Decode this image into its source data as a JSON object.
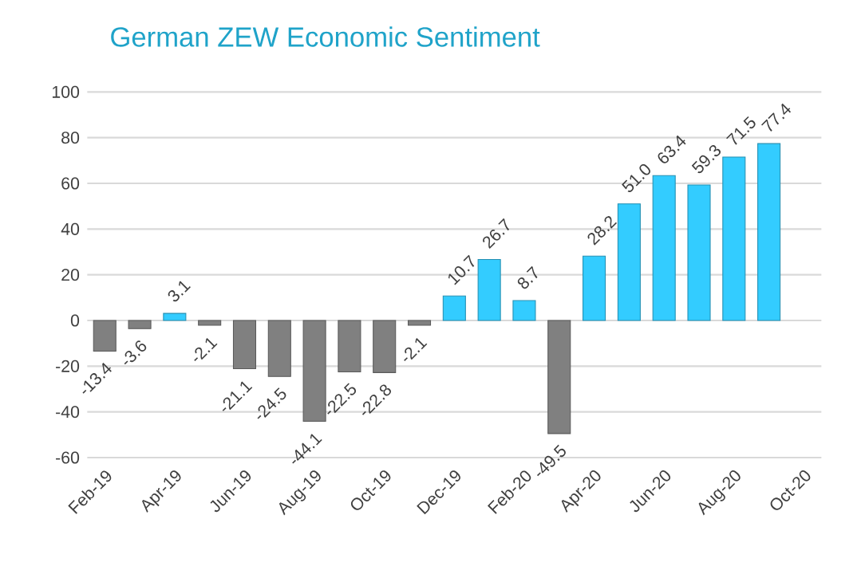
{
  "chart_data": {
    "type": "bar",
    "title": "German ZEW Economic Sentiment",
    "categories": [
      "Feb-19",
      null,
      "Apr-19",
      null,
      "Jun-19",
      null,
      "Aug-19",
      null,
      "Oct-19",
      null,
      "Dec-19",
      null,
      "Feb-20",
      null,
      "Apr-20",
      null,
      "Jun-20",
      null,
      "Aug-20",
      null,
      "Oct-20"
    ],
    "values": [
      -13.4,
      -3.6,
      3.1,
      -2.1,
      -21.1,
      -24.5,
      -44.1,
      -22.5,
      -22.8,
      -2.1,
      10.7,
      26.7,
      8.7,
      -49.5,
      28.2,
      51.0,
      63.4,
      59.3,
      71.5,
      77.4,
      null
    ],
    "value_labels": [
      "-13.4",
      "-3.6",
      "3.1",
      "-2.1",
      "-21.1",
      "-24.5",
      "-44.1",
      "-22.5",
      "-22.8",
      "-2.1",
      "10.7",
      "26.7",
      "8.7",
      "-49.5",
      "28.2",
      "51.0",
      "63.4",
      "59.3",
      "71.5",
      "77.4",
      null
    ],
    "colors": [
      "#808080",
      "#808080",
      "#33ccff",
      "#808080",
      "#808080",
      "#808080",
      "#808080",
      "#808080",
      "#808080",
      "#808080",
      "#33ccff",
      "#33ccff",
      "#33ccff",
      "#808080",
      "#33ccff",
      "#33ccff",
      "#33ccff",
      "#33ccff",
      "#33ccff",
      "#33ccff",
      "#33ccff"
    ],
    "ylim": [
      -60,
      100
    ],
    "yticks": [
      -60,
      -40,
      -20,
      0,
      20,
      40,
      60,
      80,
      100
    ],
    "grid": "y"
  }
}
